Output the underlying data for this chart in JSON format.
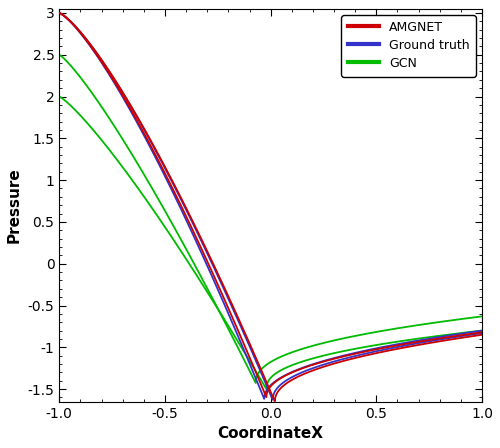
{
  "title": "",
  "xlabel": "CoordinateX",
  "ylabel": "Pressure",
  "xlim": [
    -1,
    1
  ],
  "ylim": [
    -1.65,
    3.05
  ],
  "legend_labels": [
    "AMGNET",
    "Ground truth",
    "GCN"
  ],
  "amgnet_color": "#cc0000",
  "ground_truth_color": "#3333cc",
  "gcn_color": "#00bb00",
  "background_color": "#ffffff",
  "linewidth": 1.3,
  "yticks": [
    -1.5,
    -1.0,
    -0.5,
    0.0,
    0.5,
    1.0,
    1.5,
    2.0,
    2.5,
    3.0
  ],
  "xticks": [
    -1.0,
    -0.5,
    0.0,
    0.5,
    1.0
  ]
}
